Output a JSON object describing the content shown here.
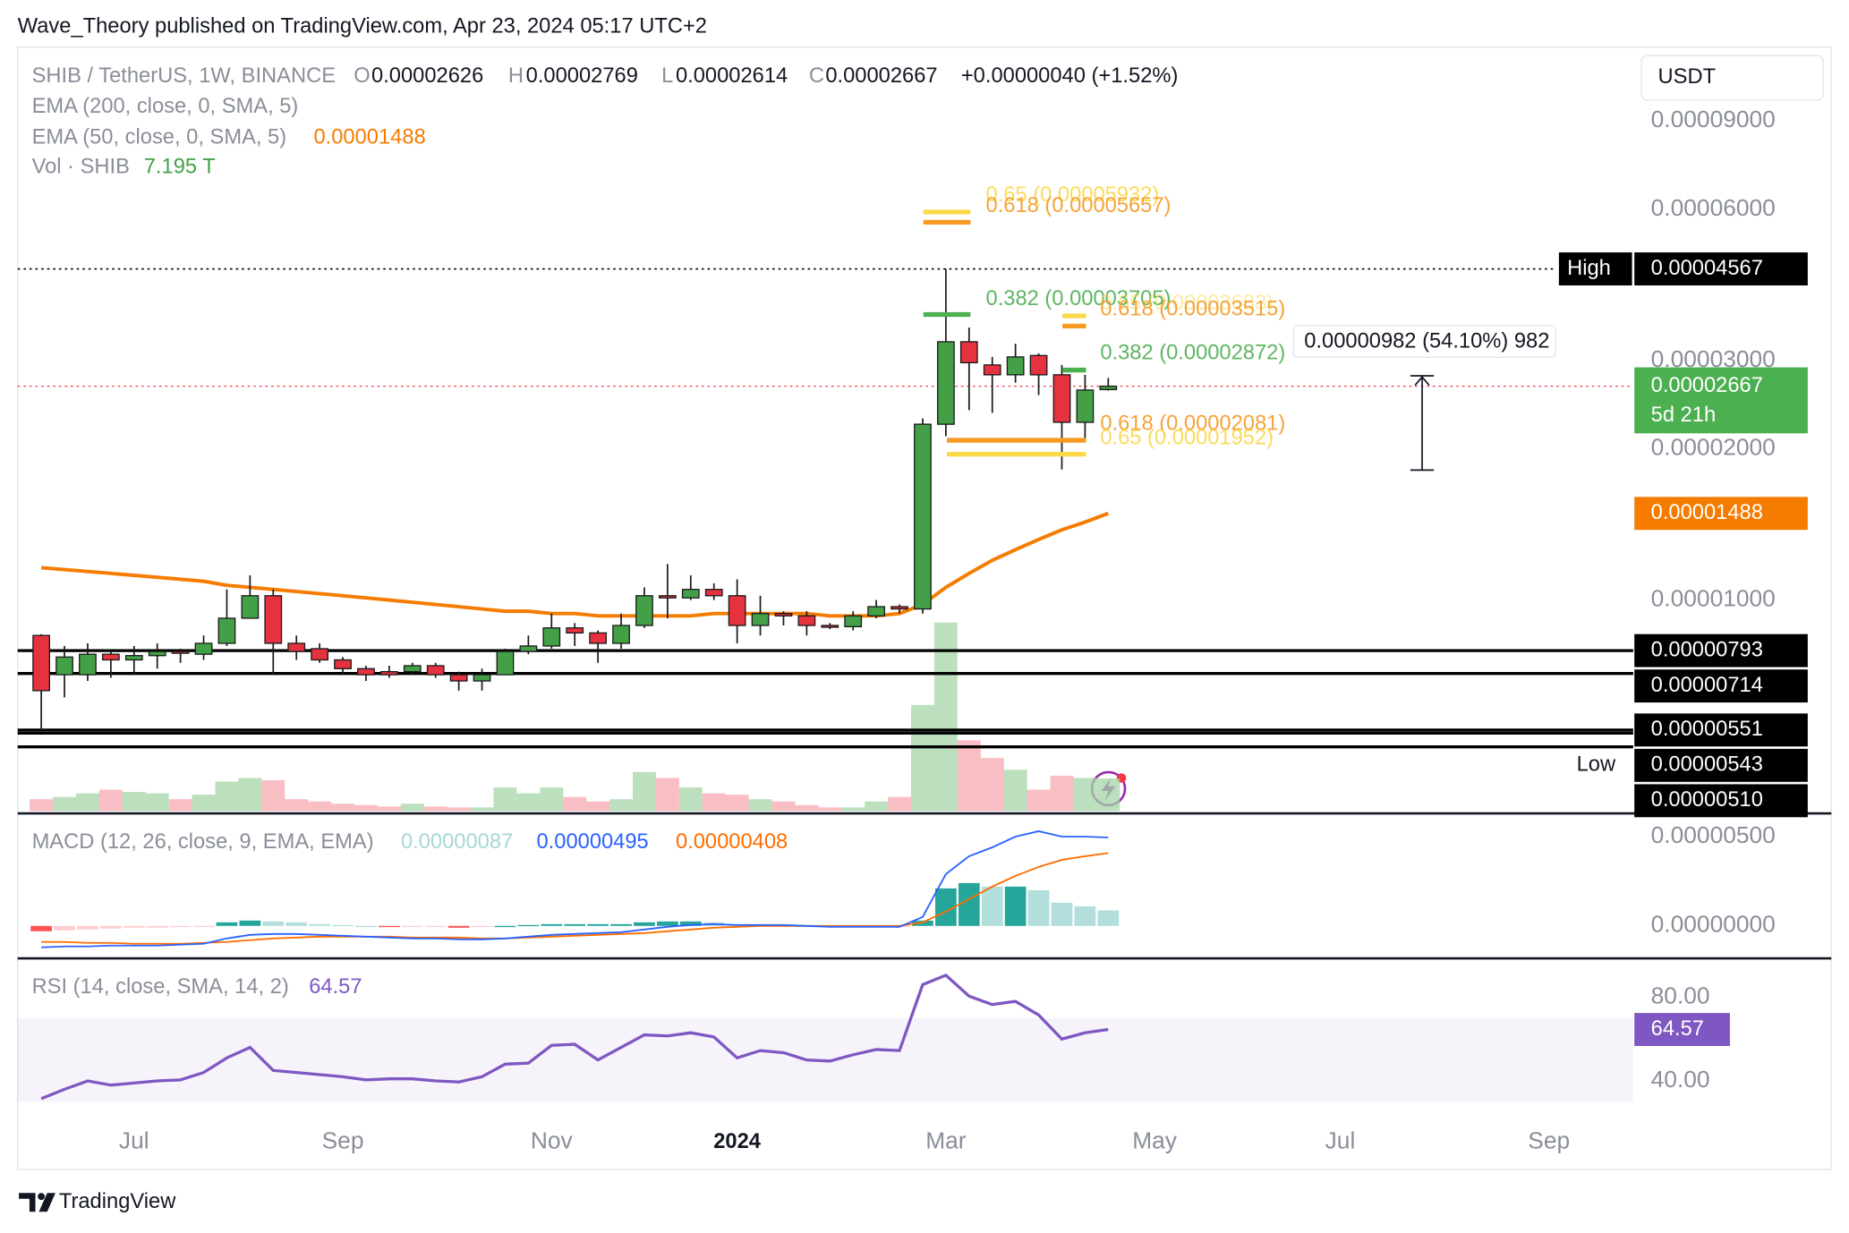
{
  "header": {
    "byline": "Wave_Theory published on TradingView.com, Apr 23, 2024 05:17 UTC+2",
    "currency": "USDT",
    "brand": "TradingView"
  },
  "chart_data": {
    "type": "candlestick",
    "log_scale": true,
    "ylim": [
      3.8e-06,
      0.0001263
    ],
    "yticks": [
      {
        "value": 9e-05,
        "label": "0.00009000"
      },
      {
        "value": 6e-05,
        "label": "0.00006000"
      },
      {
        "value": 3e-05,
        "label": "0.00003000"
      },
      {
        "value": 2e-05,
        "label": "0.00002000"
      },
      {
        "value": 1e-05,
        "label": "0.00001000"
      }
    ],
    "up_color": "#43a047",
    "down_color": "#e5323e",
    "legend": {
      "symbol": "SHIB / TetherUS, 1W, BINANCE",
      "o_label": "O",
      "o": "0.00002626",
      "h_label": "H",
      "h": "0.00002769",
      "l_label": "L",
      "l": "0.00002614",
      "c_label": "C",
      "c": "0.00002667",
      "change": "+0.00000040 (+1.52%)",
      "ema200": "EMA (200, close, 0, SMA, 5)",
      "ema50": "EMA (50, close, 0, SMA, 5)",
      "ema50_value": "0.00001488",
      "vol": "Vol · SHIB",
      "vol_value": "7.195 T",
      "macd": "MACD (12, 26, close, 9, EMA, EMA)",
      "macd_hist": "0.00000087",
      "macd_line": "0.00000495",
      "macd_signal": "0.00000408",
      "rsi": "RSI (14, close, SMA, 14, 2)",
      "rsi_value": "64.57"
    },
    "time_labels": [
      "Jul",
      "Sep",
      "Nov",
      "2024",
      "Mar",
      "May",
      "Jul",
      "Sep"
    ],
    "candles": {
      "open": [
        8.5e-06,
        7.1e-06,
        7.1e-06,
        7.8e-06,
        7.6e-06,
        7.75e-06,
        7.9e-06,
        7.8e-06,
        8.2e-06,
        9.2e-06,
        1.02e-05,
        8.2e-06,
        8e-06,
        7.6e-06,
        7.3e-06,
        7.2e-06,
        7.2e-06,
        7.4e-06,
        7.1e-06,
        6.9e-06,
        7.1e-06,
        7.9e-06,
        8.1e-06,
        8.8e-06,
        8.6e-06,
        8.2e-06,
        8.9e-06,
        1.02e-05,
        1.01e-05,
        1.05e-05,
        1.02e-05,
        8.9e-06,
        9.4e-06,
        9.3e-06,
        8.9e-06,
        8.85e-06,
        9.3e-06,
        9.7e-06,
        9.6e-06,
        2.24e-05,
        3.27e-05,
        2.94e-05,
        2.81e-05,
        3.07e-05,
        2.81e-05,
        2.26e-05,
        2.626e-05
      ],
      "high": [
        8.55e-06,
        8.1e-06,
        8.2e-06,
        7.9e-06,
        8.1e-06,
        8.2e-06,
        8e-06,
        8.5e-06,
        1.05e-05,
        1.12e-05,
        1.05e-05,
        8.5e-06,
        8.2e-06,
        7.7e-06,
        7.4e-06,
        7.4e-06,
        7.5e-06,
        7.5e-06,
        7.2e-06,
        7.3e-06,
        8e-06,
        8.5e-06,
        9.4e-06,
        9e-06,
        8.7e-06,
        9.4e-06,
        1.06e-05,
        1.18e-05,
        1.12e-05,
        1.08e-05,
        1.1e-05,
        1.02e-05,
        9.5e-06,
        9.5e-06,
        9e-06,
        9.5e-06,
        1e-05,
        9.8e-06,
        2.3e-05,
        4.567e-05,
        3.49e-05,
        3.05e-05,
        3.24e-05,
        3.1e-05,
        2.94e-05,
        2.81e-05,
        2.769e-05
      ],
      "low": [
        5.5e-06,
        6.4e-06,
        6.9e-06,
        7e-06,
        7.1e-06,
        7.3e-06,
        7.5e-06,
        7.6e-06,
        8.1e-06,
        9.2e-06,
        7.1e-06,
        7.6e-06,
        7.5e-06,
        7.1e-06,
        6.9e-06,
        7e-06,
        7.1e-06,
        7e-06,
        6.6e-06,
        6.6e-06,
        7.1e-06,
        7.8e-06,
        8e-06,
        8.1e-06,
        7.5e-06,
        8e-06,
        8.8e-06,
        9.2e-06,
        1e-05,
        1e-05,
        8.2e-06,
        8.5e-06,
        8.9e-06,
        8.5e-06,
        8.75e-06,
        8.7e-06,
        9.2e-06,
        9.4e-06,
        9.4e-06,
        2.12e-05,
        2.39e-05,
        2.36e-05,
        2.71e-05,
        2.56e-05,
        1.82e-05,
        2.1e-05,
        2.614e-05
      ],
      "close": [
        6.6e-06,
        7.7e-06,
        7.8e-06,
        7.6e-06,
        7.75e-06,
        7.9e-06,
        7.85e-06,
        8.2e-06,
        9.2e-06,
        1.02e-05,
        8.2e-06,
        7.9e-06,
        7.6e-06,
        7.3e-06,
        7.1e-06,
        7.1e-06,
        7.4e-06,
        7.1e-06,
        6.9e-06,
        7.1e-06,
        7.9e-06,
        8.1e-06,
        8.8e-06,
        8.6e-06,
        8.2e-06,
        8.9e-06,
        1.02e-05,
        1.01e-05,
        1.05e-05,
        1.02e-05,
        8.9e-06,
        9.4e-06,
        9.3e-06,
        8.9e-06,
        8.85e-06,
        9.3e-06,
        9.7e-06,
        9.6e-06,
        2.24e-05,
        3.27e-05,
        2.97e-05,
        2.81e-05,
        3.05e-05,
        2.81e-05,
        2.26e-05,
        2.62e-05,
        2.667e-05
      ]
    },
    "volume": {
      "ylim": [
        0,
        45
      ],
      "values": [
        2.6,
        3.1,
        3.9,
        4.7,
        4.2,
        3.9,
        2.6,
        3.6,
        6.5,
        7.3,
        6.8,
        2.6,
        2.1,
        1.6,
        1.3,
        1.0,
        1.6,
        1.0,
        0.8,
        0.8,
        5.2,
        3.9,
        5.2,
        3.1,
        2.1,
        2.6,
        8.6,
        7.3,
        5.2,
        3.9,
        3.6,
        2.6,
        2.1,
        1.3,
        0.8,
        0.8,
        2.1,
        3.1,
        23.4,
        41.6,
        15.6,
        11.7,
        9.1,
        4.7,
        7.8,
        7.3,
        7.195
      ]
    },
    "ema50": {
      "color": "#f57c00",
      "values": [
        1.16e-05,
        1.15e-05,
        1.14e-05,
        1.13e-05,
        1.12e-05,
        1.11e-05,
        1.1e-05,
        1.09e-05,
        1.07e-05,
        1.06e-05,
        1.05e-05,
        1.04e-05,
        1.03e-05,
        1.02e-05,
        1.01e-05,
        1e-05,
        9.9e-06,
        9.8e-06,
        9.7e-06,
        9.6e-06,
        9.5e-06,
        9.5e-06,
        9.4e-06,
        9.4e-06,
        9.3e-06,
        9.3e-06,
        9.3e-06,
        9.3e-06,
        9.3e-06,
        9.4e-06,
        9.4e-06,
        9.4e-06,
        9.4e-06,
        9.4e-06,
        9.3e-06,
        9.3e-06,
        9.3e-06,
        9.4e-06,
        9.8e-06,
        1.06e-05,
        1.13e-05,
        1.2e-05,
        1.26e-05,
        1.32e-05,
        1.38e-05,
        1.43e-05,
        1.488e-05
      ]
    },
    "levels": [
      {
        "value": 7.93e-06,
        "label": "0.00000793"
      },
      {
        "value": 7.14e-06,
        "label": "0.00000714"
      },
      {
        "value": 5.51e-06,
        "label": "0.00000551"
      },
      {
        "tag": "Low",
        "value": 5.43e-06,
        "label": "0.00000543"
      },
      {
        "value": 5.1e-06,
        "label": "0.00000510"
      }
    ],
    "high": {
      "tag": "High",
      "value": 4.567e-05,
      "label": "0.00004567"
    },
    "current": {
      "value": 2.667e-05,
      "label": "0.00002667",
      "countdown": "5d 21h",
      "color": "#4caf50"
    },
    "fibs": [
      {
        "label": "0.65 (0.00005932)",
        "value": 5.932e-05,
        "color": "#fbd84a"
      },
      {
        "label": "0.618 (0.00005657)",
        "value": 5.657e-05,
        "color": "#f59a23"
      },
      {
        "label": "0.382 (0.00003705)",
        "value": 3.705e-05,
        "color": "#4caf50"
      },
      {
        "label": "0.65 (0.00003683)",
        "value": 3.683e-05,
        "color": "#fbd84a"
      },
      {
        "label": "0.618 (0.00003515)",
        "value": 3.515e-05,
        "color": "#f59a23"
      },
      {
        "label": "0.382 (0.00002872)",
        "value": 2.872e-05,
        "color": "#4caf50"
      },
      {
        "label": "0.618 (0.00002081)",
        "value": 2.081e-05,
        "color": "#f59a23"
      },
      {
        "label": "0.65 (0.00001952)",
        "value": 1.952e-05,
        "color": "#fbd84a"
      }
    ],
    "measure": {
      "label": "0.00000982 (54.10%) 982",
      "from": 1.815e-05,
      "to": 2.797e-05
    },
    "macd": {
      "ylim": [
        -1.75e-06,
        6.17e-06
      ],
      "yticks": [
        {
          "value": 5e-06,
          "label": "0.00000500"
        },
        {
          "value": 0,
          "label": "0.00000000"
        }
      ],
      "macd_color": "#2962ff",
      "signal_color": "#ff6d00",
      "macd": [
        -1.2e-06,
        -1.15e-06,
        -1.15e-06,
        -1.1e-06,
        -1.1e-06,
        -1.1e-06,
        -1.05e-06,
        -1e-06,
        -7e-07,
        -5e-07,
        -4.5e-07,
        -4.5e-07,
        -5e-07,
        -5.5e-07,
        -6e-07,
        -6.5e-07,
        -7e-07,
        -7e-07,
        -7.5e-07,
        -7.5e-07,
        -7e-07,
        -6e-07,
        -5e-07,
        -4.5e-07,
        -4e-07,
        -3.5e-07,
        -2e-07,
        -5e-08,
        5e-08,
        1e-07,
        5e-08,
        5e-08,
        5e-08,
        0,
        -5e-08,
        -5e-08,
        -5e-08,
        -5e-08,
        5e-07,
        2.9e-06,
        3.9e-06,
        4.4e-06,
        5e-06,
        5.3e-06,
        5e-06,
        5e-06,
        4.95e-06
      ],
      "signal": [
        -9e-07,
        -9e-07,
        -9.5e-07,
        -9.5e-07,
        -1e-06,
        -1e-06,
        -1e-06,
        -9.5e-07,
        -9e-07,
        -8e-07,
        -7e-07,
        -6.5e-07,
        -6e-07,
        -6e-07,
        -6e-07,
        -6e-07,
        -6.5e-07,
        -6.5e-07,
        -6.5e-07,
        -7e-07,
        -7e-07,
        -6.5e-07,
        -6e-07,
        -5.5e-07,
        -5e-07,
        -4.5e-07,
        -4e-07,
        -3e-07,
        -2e-07,
        -1e-07,
        -5e-08,
        0,
        0,
        0,
        0,
        0,
        0,
        0,
        2e-07,
        8e-07,
        1.5e-06,
        2.2e-06,
        2.8e-06,
        3.3e-06,
        3.7e-06,
        3.9e-06,
        4.08e-06
      ],
      "hist": [
        -3e-07,
        -2.5e-07,
        -2e-07,
        -1.5e-07,
        -1e-07,
        -1e-07,
        -5e-08,
        -5e-08,
        2e-07,
        3e-07,
        2.5e-07,
        2e-07,
        1e-07,
        5e-08,
        0,
        -5e-08,
        -5e-08,
        -5e-08,
        -1e-07,
        -5e-08,
        0,
        5e-08,
        1e-07,
        1e-07,
        1e-07,
        1e-07,
        2e-07,
        2.5e-07,
        2.5e-07,
        2e-07,
        1e-07,
        5e-08,
        5e-08,
        0,
        -5e-08,
        -5e-08,
        -5e-08,
        -5e-08,
        3e-07,
        2.1e-06,
        2.4e-06,
        2.2e-06,
        2.2e-06,
        2e-06,
        1.3e-06,
        1.1e-06,
        8.7e-07
      ]
    },
    "rsi": {
      "ylim": [
        21.4,
        98
      ],
      "yticks": [
        {
          "value": 80,
          "label": "80.00"
        },
        {
          "value": 40,
          "label": "40.00"
        }
      ],
      "band": [
        30,
        70
      ],
      "color": "#7e57c2",
      "values": [
        31.5,
        36,
        40,
        38,
        39,
        40,
        40.5,
        44,
        51,
        56,
        45,
        44,
        43,
        42,
        40.5,
        41,
        41,
        40,
        39.5,
        42,
        48,
        48.5,
        57,
        57.5,
        50,
        56,
        62,
        61.5,
        63,
        61,
        51,
        54.5,
        53.5,
        50,
        49.5,
        52.5,
        55,
        54.5,
        86,
        90.5,
        80.5,
        76.5,
        78,
        71.5,
        60,
        63,
        64.57
      ]
    }
  }
}
